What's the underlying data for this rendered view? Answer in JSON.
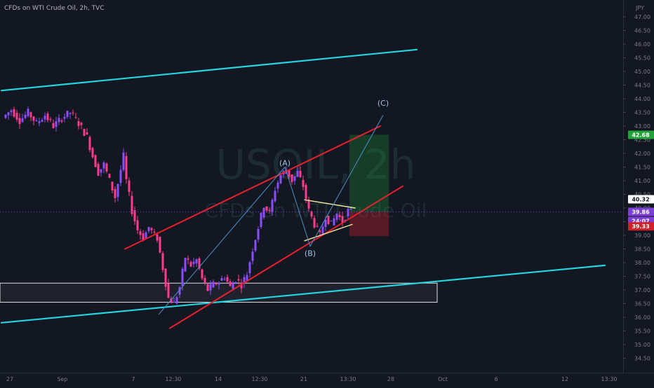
{
  "header": {
    "symbol_line": "CFDs on WTI Crude Oil, 2h, TVC",
    "currency": "JPY"
  },
  "watermark": {
    "symbol": "USOIL, 2h",
    "description": "CFDs on WTI Crude Oil"
  },
  "colors": {
    "background": "#131722",
    "axis_text": "#787b86",
    "bull_candle": "#8a4dff",
    "bear_candle": "#ff3b8f",
    "channel_red": "#e8202e",
    "long_trend_cyan": "#26d4e0",
    "wave_line": "#4a90c8",
    "triangle_yellow": "#f5e6a0",
    "price_current": "#7b3fd6",
    "price_green": "#22a33a",
    "price_red": "#d0202a",
    "price_white": "#ffffff"
  },
  "price_labels": {
    "take_profit": "42.68",
    "last_close": "40.32",
    "current": "39.86",
    "countdown": "24:07",
    "stop_loss": "39.33"
  },
  "wave_labels": [
    "(A)",
    "(B)",
    "(C)"
  ],
  "chart_data": {
    "type": "candlestick",
    "title": "CFDs on WTI Crude Oil, 2h, TVC",
    "ylim": [
      34.0,
      47.5
    ],
    "y_ticks": [
      "34.50",
      "35.00",
      "35.50",
      "36.00",
      "36.50",
      "37.00",
      "37.50",
      "38.00",
      "38.50",
      "39.00",
      "39.50",
      "40.00",
      "40.50",
      "41.00",
      "41.50",
      "42.00",
      "42.50",
      "43.00",
      "43.50",
      "44.00",
      "44.50",
      "45.00",
      "45.50",
      "46.00",
      "46.50",
      "47.00"
    ],
    "x_ticks": [
      "27",
      "Sep",
      "7",
      "12:30",
      "14",
      "12:30",
      "21",
      "13:30",
      "28",
      "Oct",
      "6",
      "12",
      "13:30"
    ],
    "price_path": [
      [
        0,
        43.3
      ],
      [
        3,
        43.6
      ],
      [
        6,
        43.2
      ],
      [
        9,
        43.5
      ],
      [
        12,
        43.1
      ],
      [
        15,
        43.4
      ],
      [
        18,
        43.0
      ],
      [
        21,
        43.3
      ],
      [
        24,
        43.5
      ],
      [
        27,
        43.1
      ],
      [
        30,
        42.6
      ],
      [
        32,
        41.9
      ],
      [
        34,
        41.3
      ],
      [
        36,
        41.6
      ],
      [
        38,
        41.0
      ],
      [
        40,
        40.4
      ],
      [
        42,
        41.4
      ],
      [
        43,
        41.9
      ],
      [
        44,
        41.0
      ],
      [
        46,
        39.9
      ],
      [
        48,
        39.2
      ],
      [
        50,
        38.9
      ],
      [
        52,
        39.3
      ],
      [
        54,
        39.0
      ],
      [
        55,
        38.9
      ],
      [
        57,
        37.8
      ],
      [
        59,
        36.7
      ],
      [
        61,
        36.5
      ],
      [
        63,
        37.1
      ],
      [
        65,
        38.2
      ],
      [
        67,
        37.9
      ],
      [
        69,
        38.1
      ],
      [
        71,
        37.4
      ],
      [
        73,
        37.0
      ],
      [
        75,
        37.2
      ],
      [
        77,
        37.3
      ],
      [
        79,
        37.5
      ],
      [
        81,
        37.1
      ],
      [
        83,
        37.4
      ],
      [
        85,
        37.2
      ],
      [
        87,
        37.6
      ],
      [
        89,
        38.5
      ],
      [
        91,
        39.3
      ],
      [
        93,
        40.1
      ],
      [
        95,
        39.8
      ],
      [
        97,
        40.7
      ],
      [
        99,
        41.2
      ],
      [
        101,
        41.4
      ],
      [
        103,
        41.0
      ],
      [
        105,
        41.3
      ],
      [
        107,
        40.8
      ],
      [
        109,
        39.9
      ],
      [
        111,
        39.4
      ],
      [
        113,
        39.0
      ],
      [
        115,
        39.7
      ],
      [
        117,
        39.4
      ],
      [
        119,
        39.8
      ],
      [
        121,
        39.5
      ],
      [
        123,
        39.9
      ],
      [
        124,
        39.86
      ]
    ],
    "drawings": {
      "long_trend_upper": [
        [
          0,
          44.3
        ],
        [
          148,
          45.8
        ]
      ],
      "long_trend_lower": [
        [
          0,
          35.8
        ],
        [
          215,
          37.9
        ]
      ],
      "channel_upper": [
        [
          44,
          38.5
        ],
        [
          135,
          43.0
        ]
      ],
      "channel_lower": [
        [
          60,
          35.6
        ],
        [
          143,
          40.8
        ]
      ],
      "wave_path": [
        [
          56,
          36.1
        ],
        [
          101,
          41.5
        ],
        [
          110,
          38.6
        ],
        [
          136,
          43.4
        ]
      ],
      "triangle_upper": [
        [
          108,
          40.3
        ],
        [
          126,
          40.0
        ]
      ],
      "triangle_lower": [
        [
          108,
          38.8
        ],
        [
          125,
          39.4
        ]
      ],
      "demand_zone": [
        36.55,
        37.25
      ],
      "wave_points": [
        [
          101,
          41.55,
          "(A)"
        ],
        [
          110,
          38.25,
          "(B)"
        ],
        [
          136,
          43.75,
          "(C)"
        ]
      ]
    },
    "position": {
      "entry": 39.86,
      "take_profit": 42.68,
      "stop_loss": 39.33,
      "start": 124,
      "end": 138
    }
  }
}
